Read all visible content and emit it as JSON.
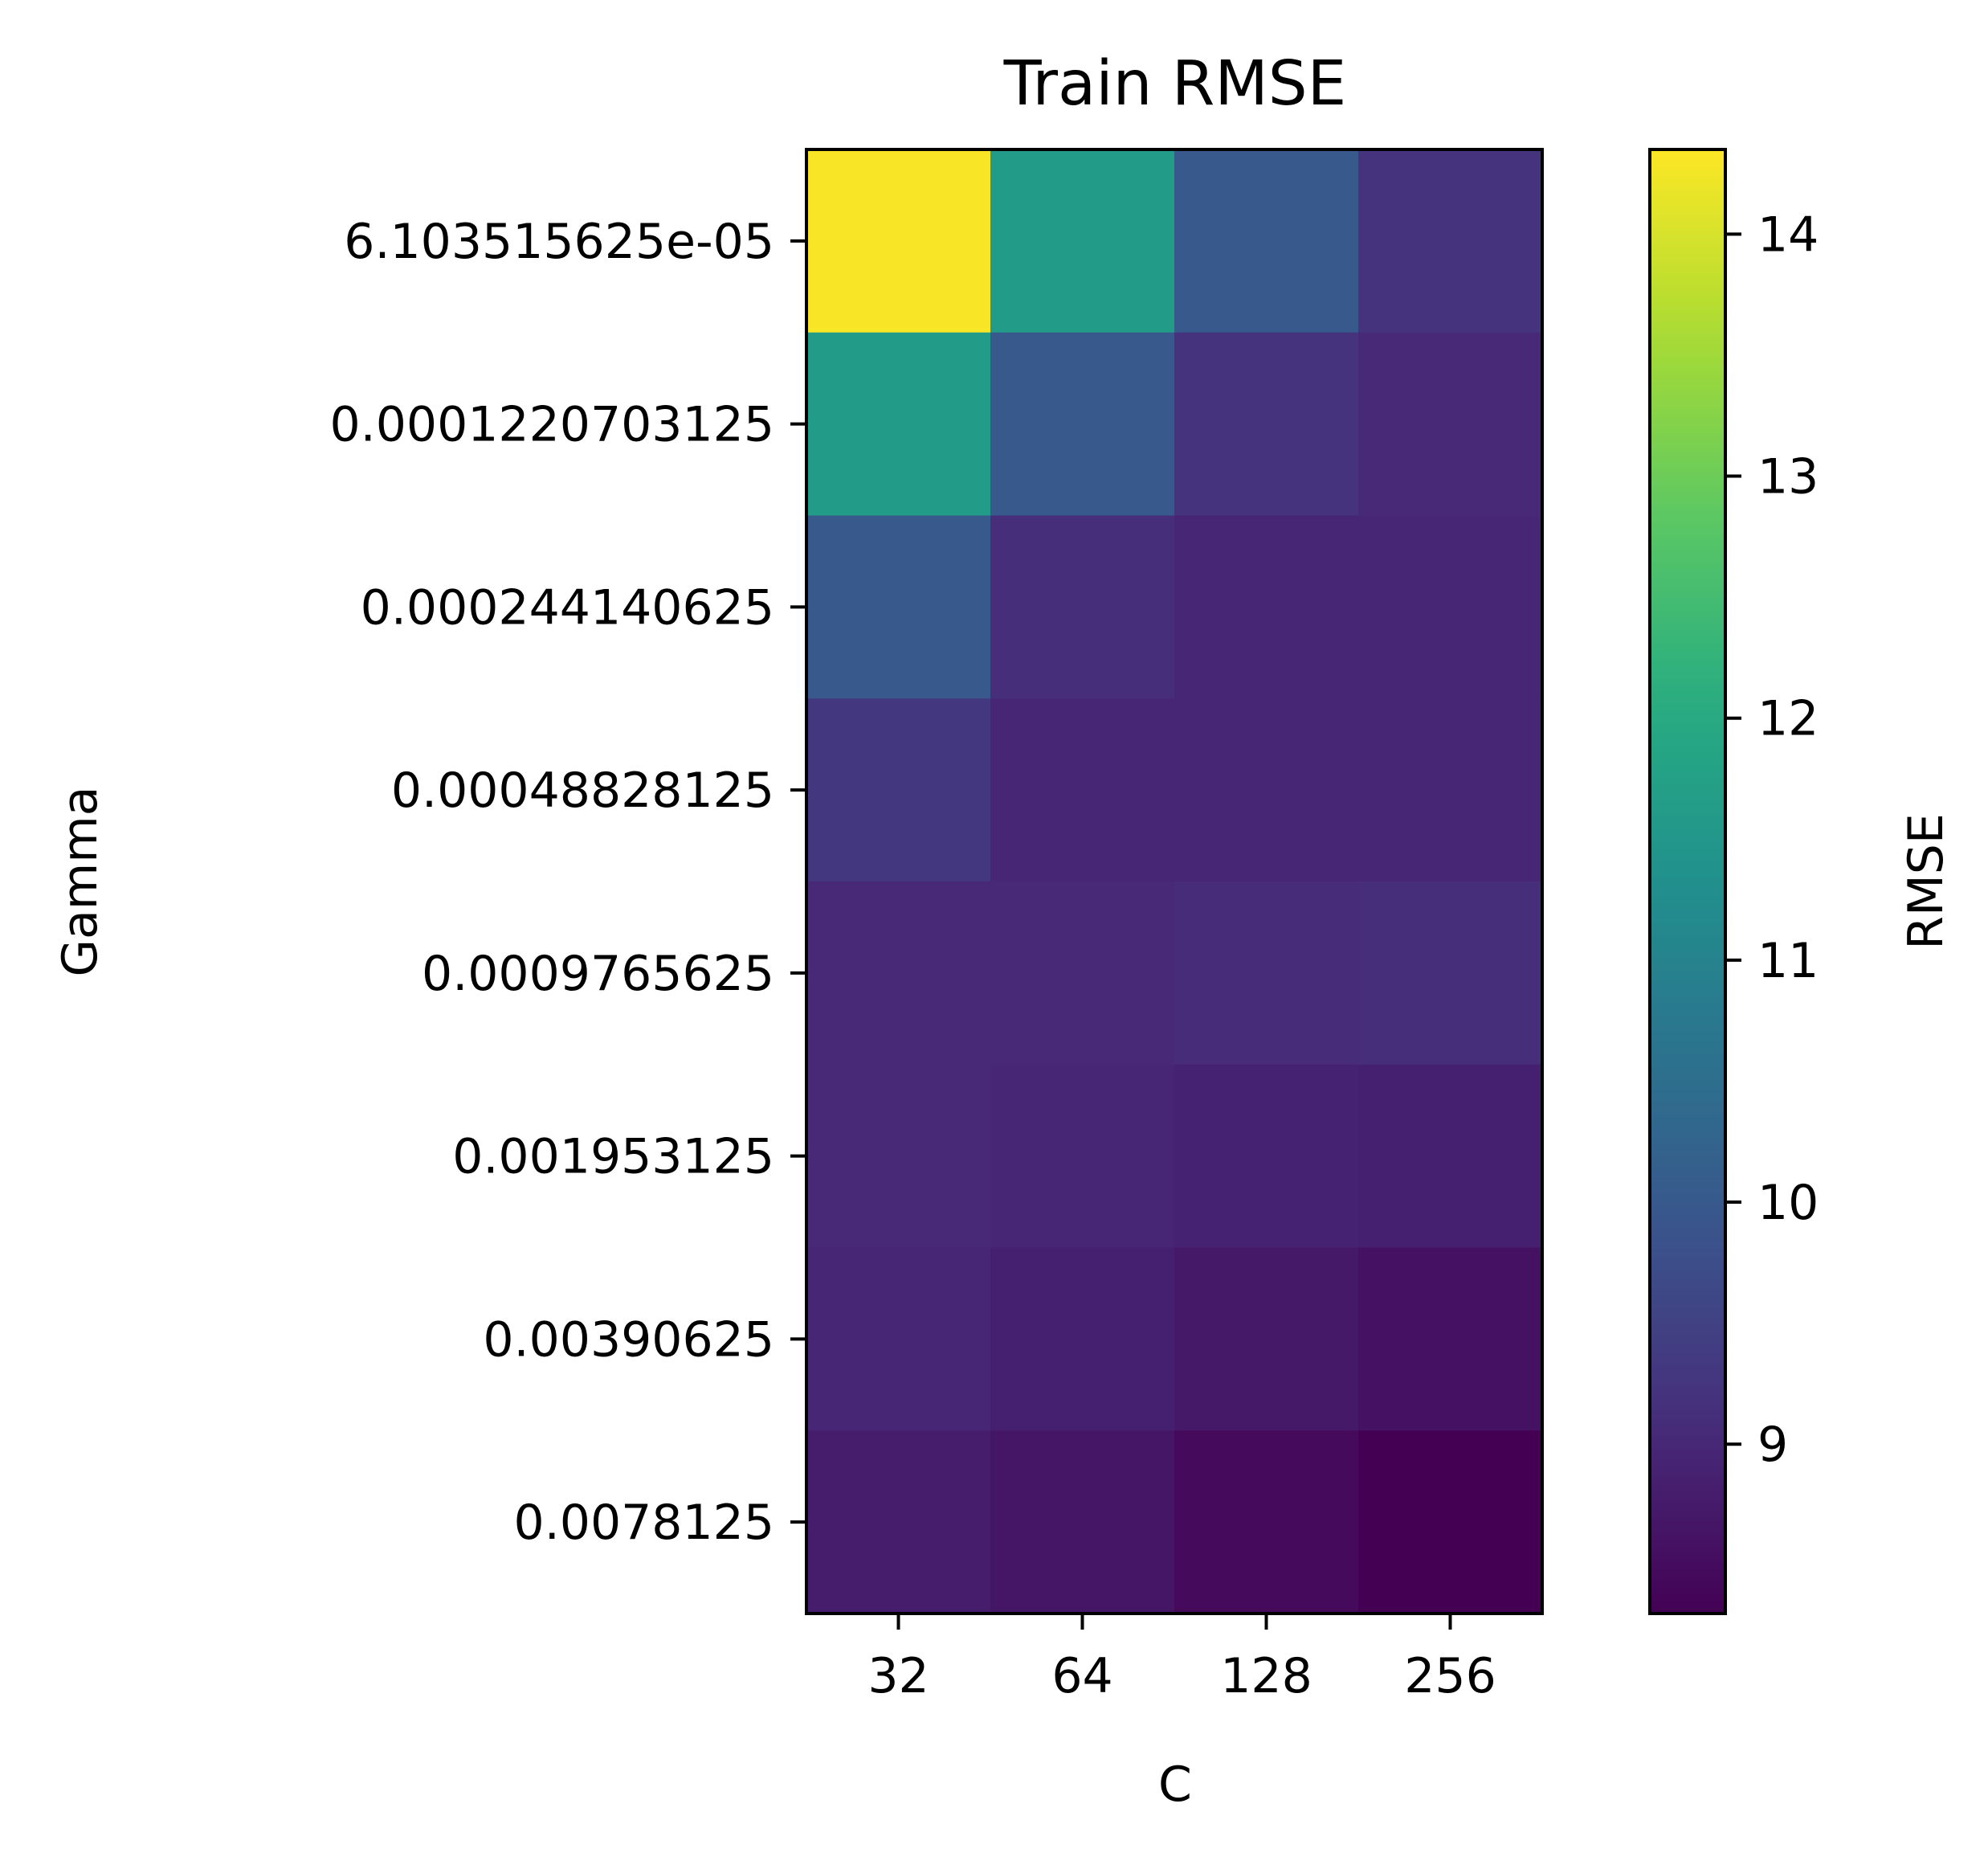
{
  "chart_data": {
    "type": "heatmap",
    "title": "Train RMSE",
    "xlabel": "C",
    "ylabel": "Gamma",
    "x_categories": [
      "32",
      "64",
      "128",
      "256"
    ],
    "y_categories": [
      "6.103515625e-05",
      "0.0001220703125",
      "0.000244140625",
      "0.00048828125",
      "0.0009765625",
      "0.001953125",
      "0.00390625",
      "0.0078125"
    ],
    "values": [
      [
        14.3,
        11.6,
        10.0,
        9.2
      ],
      [
        11.6,
        10.0,
        9.2,
        9.0
      ],
      [
        10.0,
        9.1,
        8.95,
        8.95
      ],
      [
        9.3,
        8.95,
        8.95,
        8.95
      ],
      [
        9.0,
        9.0,
        9.05,
        9.1
      ],
      [
        9.0,
        8.95,
        8.9,
        8.85
      ],
      [
        8.95,
        8.85,
        8.7,
        8.6
      ],
      [
        8.8,
        8.65,
        8.45,
        8.3
      ]
    ],
    "colormap": "viridis",
    "colorbar": {
      "label": "RMSE",
      "range": [
        8.3,
        14.35
      ],
      "ticks": [
        9,
        10,
        11,
        12,
        13,
        14
      ]
    },
    "grid": false
  }
}
